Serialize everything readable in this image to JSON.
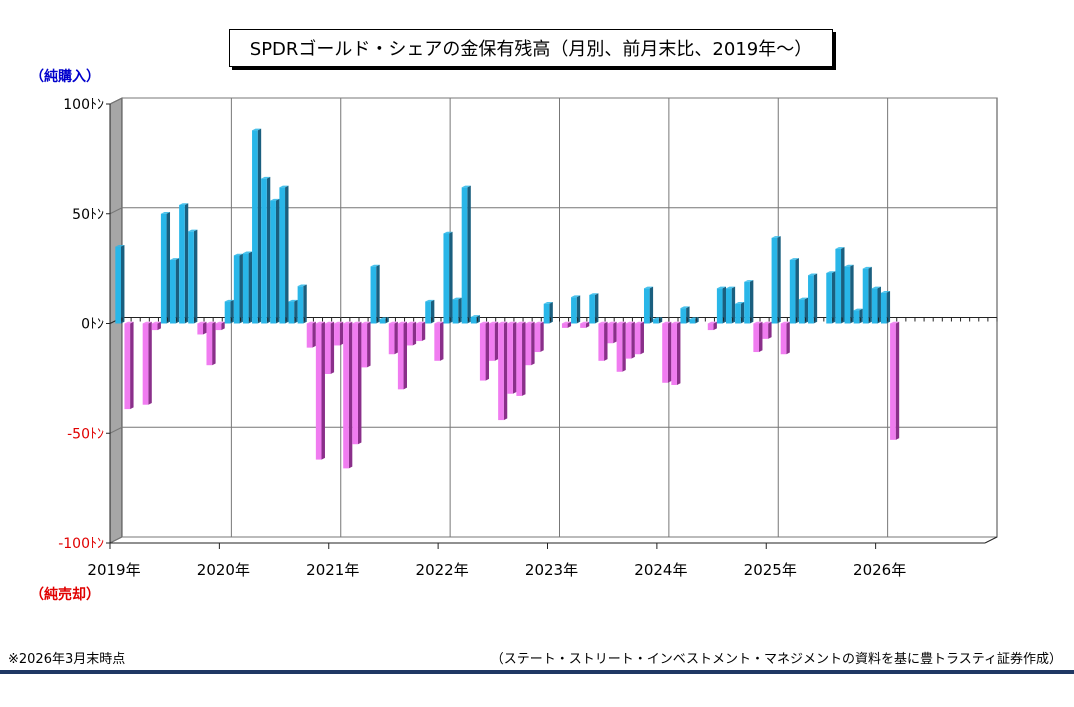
{
  "title": "SPDRゴールド・シェアの金保有残高（月別、前月末比、2019年～）",
  "label_top": "（純購入）",
  "label_bottom": "（純売却）",
  "footnote": "※2026年3月末時点",
  "source": "（ステート・ストリート・インベストメント・マネジメントの資料を基に豊トラスティ証券作成）",
  "colors": {
    "positive": "#29b6e8",
    "negative": "#f07cf0",
    "positive_dark": "#1a5f7f",
    "negative_dark": "#8a2f8a",
    "label_top": "#0000cc",
    "label_bottom": "#e00000",
    "bottom_rule": "#1f3864"
  },
  "chart_data": {
    "type": "bar",
    "ylim": [
      -100,
      100
    ],
    "y_ticks": [
      {
        "value": 100,
        "label": "100ﾄﾝ",
        "color": "#000000"
      },
      {
        "value": 50,
        "label": "50ﾄﾝ",
        "color": "#000000"
      },
      {
        "value": 0,
        "label": "0ﾄﾝ",
        "color": "#000000"
      },
      {
        "value": -50,
        "label": "-50ﾄﾝ",
        "color": "#e00000"
      },
      {
        "value": -100,
        "label": "-100ﾄﾝ",
        "color": "#e00000"
      }
    ],
    "x_ticks": [
      "2019年",
      "2020年",
      "2021年",
      "2022年",
      "2023年",
      "2024年",
      "2025年",
      "2026年"
    ],
    "start": "2019-01",
    "months_total": 96,
    "grid": true,
    "values": [
      35,
      -39,
      0,
      -37,
      -3,
      50,
      29,
      54,
      42,
      -5,
      -19,
      -3,
      10,
      31,
      32,
      88,
      66,
      56,
      62,
      10,
      17,
      -11,
      -62,
      -23,
      -10,
      -66,
      -55,
      -20,
      26,
      2,
      -14,
      -30,
      -10,
      -8,
      10,
      -17,
      41,
      11,
      62,
      3,
      -26,
      -17,
      -44,
      -32,
      -33,
      -19,
      -13,
      9,
      0,
      -2,
      12,
      -2,
      13,
      -17,
      -9,
      -22,
      -16,
      -14,
      16,
      2,
      -27,
      -28,
      7,
      2,
      0,
      -3,
      16,
      16,
      9,
      19,
      -13,
      -7,
      39,
      -14,
      29,
      11,
      22,
      0,
      23,
      34,
      26,
      6,
      25,
      16,
      14,
      -53
    ]
  }
}
